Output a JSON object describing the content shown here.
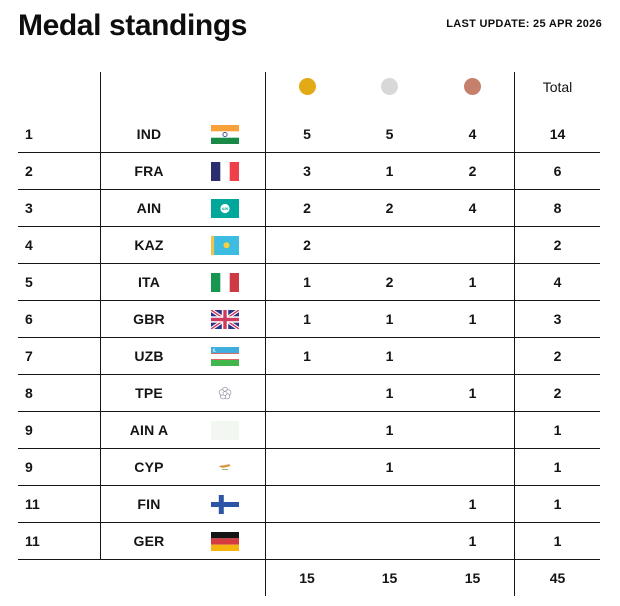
{
  "header": {
    "title": "Medal standings",
    "last_update": "LAST UPDATE: 25 APR 2026"
  },
  "table": {
    "medal_colors": {
      "gold": "#E2AA15",
      "silver": "#D8D8D8",
      "bronze": "#C5806B"
    },
    "icons": {
      "gold": "gold-medal-circle",
      "silver": "silver-medal-circle",
      "bronze": "bronze-medal-circle"
    },
    "total_label": "Total",
    "rows": [
      {
        "rank": "1",
        "noc": "IND",
        "flag": "ind",
        "gold": "5",
        "silver": "5",
        "bronze": "4",
        "total": "14"
      },
      {
        "rank": "2",
        "noc": "FRA",
        "flag": "fra",
        "gold": "3",
        "silver": "1",
        "bronze": "2",
        "total": "6"
      },
      {
        "rank": "3",
        "noc": "AIN",
        "flag": "ain",
        "gold": "2",
        "silver": "2",
        "bronze": "4",
        "total": "8"
      },
      {
        "rank": "4",
        "noc": "KAZ",
        "flag": "kaz",
        "gold": "2",
        "silver": "",
        "bronze": "",
        "total": "2"
      },
      {
        "rank": "5",
        "noc": "ITA",
        "flag": "ita",
        "gold": "1",
        "silver": "2",
        "bronze": "1",
        "total": "4"
      },
      {
        "rank": "6",
        "noc": "GBR",
        "flag": "gbr",
        "gold": "1",
        "silver": "1",
        "bronze": "1",
        "total": "3"
      },
      {
        "rank": "7",
        "noc": "UZB",
        "flag": "uzb",
        "gold": "1",
        "silver": "1",
        "bronze": "",
        "total": "2"
      },
      {
        "rank": "8",
        "noc": "TPE",
        "flag": "tpe",
        "gold": "",
        "silver": "1",
        "bronze": "1",
        "total": "2"
      },
      {
        "rank": "9",
        "noc": "AIN A",
        "flag": "aina",
        "gold": "",
        "silver": "1",
        "bronze": "",
        "total": "1"
      },
      {
        "rank": "9",
        "noc": "CYP",
        "flag": "cyp",
        "gold": "",
        "silver": "1",
        "bronze": "",
        "total": "1"
      },
      {
        "rank": "11",
        "noc": "FIN",
        "flag": "fin",
        "gold": "",
        "silver": "",
        "bronze": "1",
        "total": "1"
      },
      {
        "rank": "11",
        "noc": "GER",
        "flag": "ger",
        "gold": "",
        "silver": "",
        "bronze": "1",
        "total": "1"
      }
    ],
    "totals": {
      "gold": "15",
      "silver": "15",
      "bronze": "15",
      "total": "45"
    }
  }
}
